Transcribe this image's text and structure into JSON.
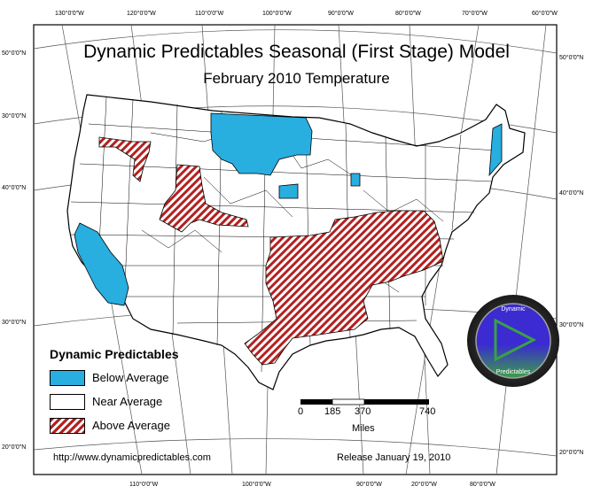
{
  "title": "Dynamic Predictables Seasonal (First Stage) Model",
  "subtitle": "February 2010 Temperature",
  "graticule": {
    "top_longitudes": [
      "130°0'0\"W",
      "120°0'0\"W",
      "110°0'0\"W",
      "100°0'0\"W",
      "90°0'0\"W",
      "80°0'0\"W",
      "70°0'0\"W",
      "60°0'0\"W"
    ],
    "bottom_longitudes": [
      "110°0'0\"W",
      "100°0'0\"W",
      "90°0'0\"W",
      "20°0'0\"W",
      "80°0'0\"W"
    ],
    "left_latitudes": [
      "50°0'0\"N",
      "30°0'0\"N",
      "40°0'0\"N",
      "30°0'0\"N",
      "20°0'0\"N"
    ],
    "right_latitudes": [
      "50°0'0\"N",
      "40°0'0\"N",
      "30°0'0\"N",
      "20°0'0\"N"
    ]
  },
  "legend": {
    "title": "Dynamic Predictables",
    "items": [
      {
        "label": "Below Average",
        "color": "#29aee0"
      },
      {
        "label": "Near Average",
        "color": "#ffffff"
      },
      {
        "label": "Above Average",
        "color": "#b32020"
      }
    ]
  },
  "scale_bar": {
    "ticks": [
      "0",
      "185",
      "370",
      "740"
    ],
    "unit": "Miles"
  },
  "logo": {
    "top_text": "Dynamic",
    "bottom_text": "Predictables",
    "colors": [
      "#3b2bd0",
      "#3aa045"
    ]
  },
  "footer": {
    "url": "http://www.dynamicpredictables.com",
    "release": "Release January 19, 2010"
  }
}
